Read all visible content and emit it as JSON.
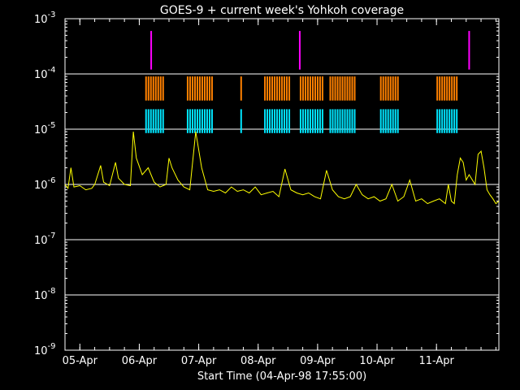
{
  "chart_data": {
    "type": "line",
    "title": "GOES-9 + current week's Yohkoh coverage",
    "xlabel": "Start Time (04-Apr-98 17:55:00)",
    "ylabel": "",
    "y_scale": "log",
    "ylim": [
      "1e-9",
      "1e-3"
    ],
    "y_tick_labels": [
      {
        "base": "10",
        "exp": "-9"
      },
      {
        "base": "10",
        "exp": "-8"
      },
      {
        "base": "10",
        "exp": "-7"
      },
      {
        "base": "10",
        "exp": "-6"
      },
      {
        "base": "10",
        "exp": "-5"
      },
      {
        "base": "10",
        "exp": "-4"
      },
      {
        "base": "10",
        "exp": "-3"
      }
    ],
    "x_tick_labels": [
      "05-Apr",
      "06-Apr",
      "07-Apr",
      "08-Apr",
      "09-Apr",
      "10-Apr",
      "11-Apr"
    ],
    "x_range_days": [
      0,
      7.3
    ],
    "x_tick_days": [
      0.25,
      1.25,
      2.25,
      3.25,
      4.25,
      5.25,
      6.25
    ],
    "grid_y_values": [
      "1e-4",
      "1e-5",
      "1e-6",
      "1e-7",
      "1e-8"
    ],
    "colors": {
      "xray": "#ffff00",
      "flare_markers": "#ff00ff",
      "coverage_upper": "#ff8000",
      "coverage_lower": "#00e5ff",
      "grid": "#ffffff",
      "axes": "#ffffff"
    },
    "series": [
      {
        "values": [
          [
            0.0,
            1e-06
          ],
          [
            0.05,
            8.5e-07
          ],
          [
            0.1,
            2e-06
          ],
          [
            0.15,
            9e-07
          ],
          [
            0.25,
            9.5e-07
          ],
          [
            0.35,
            8e-07
          ],
          [
            0.45,
            8.5e-07
          ],
          [
            0.5,
            1e-06
          ],
          [
            0.6,
            2.2e-06
          ],
          [
            0.65,
            1.1e-06
          ],
          [
            0.75,
            9.5e-07
          ],
          [
            0.85,
            2.5e-06
          ],
          [
            0.9,
            1.3e-06
          ],
          [
            1.0,
            1e-06
          ],
          [
            1.1,
            9.5e-07
          ],
          [
            1.15,
            9e-06
          ],
          [
            1.2,
            3e-06
          ],
          [
            1.3,
            1.5e-06
          ],
          [
            1.4,
            2e-06
          ],
          [
            1.5,
            1.1e-06
          ],
          [
            1.6,
            9e-07
          ],
          [
            1.7,
            1e-06
          ],
          [
            1.75,
            3e-06
          ],
          [
            1.8,
            2e-06
          ],
          [
            1.9,
            1.2e-06
          ],
          [
            2.0,
            9e-07
          ],
          [
            2.1,
            8e-07
          ],
          [
            2.2,
            9e-06
          ],
          [
            2.3,
            2e-06
          ],
          [
            2.4,
            8e-07
          ],
          [
            2.5,
            7.5e-07
          ],
          [
            2.6,
            8e-07
          ],
          [
            2.7,
            7e-07
          ],
          [
            2.8,
            9e-07
          ],
          [
            2.9,
            7.5e-07
          ],
          [
            3.0,
            8e-07
          ],
          [
            3.1,
            7e-07
          ],
          [
            3.2,
            9e-07
          ],
          [
            3.3,
            6.5e-07
          ],
          [
            3.4,
            7e-07
          ],
          [
            3.5,
            7.5e-07
          ],
          [
            3.6,
            6e-07
          ],
          [
            3.7,
            1.9e-06
          ],
          [
            3.8,
            8e-07
          ],
          [
            3.9,
            7e-07
          ],
          [
            4.0,
            6.5e-07
          ],
          [
            4.1,
            7e-07
          ],
          [
            4.2,
            6e-07
          ],
          [
            4.3,
            5.5e-07
          ],
          [
            4.4,
            1.8e-06
          ],
          [
            4.5,
            8e-07
          ],
          [
            4.6,
            6e-07
          ],
          [
            4.7,
            5.5e-07
          ],
          [
            4.8,
            6e-07
          ],
          [
            4.9,
            1e-06
          ],
          [
            5.0,
            6.5e-07
          ],
          [
            5.1,
            5.5e-07
          ],
          [
            5.2,
            6e-07
          ],
          [
            5.3,
            5e-07
          ],
          [
            5.4,
            5.5e-07
          ],
          [
            5.5,
            1e-06
          ],
          [
            5.6,
            5e-07
          ],
          [
            5.7,
            6e-07
          ],
          [
            5.8,
            1.2e-06
          ],
          [
            5.9,
            5e-07
          ],
          [
            6.0,
            5.5e-07
          ],
          [
            6.1,
            4.5e-07
          ],
          [
            6.2,
            5e-07
          ],
          [
            6.3,
            5.5e-07
          ],
          [
            6.4,
            4.5e-07
          ],
          [
            6.45,
            1e-06
          ],
          [
            6.5,
            5e-07
          ],
          [
            6.55,
            4.5e-07
          ],
          [
            6.6,
            1.5e-06
          ],
          [
            6.65,
            3e-06
          ],
          [
            6.7,
            2.5e-06
          ],
          [
            6.75,
            1.2e-06
          ],
          [
            6.8,
            1.5e-06
          ],
          [
            6.9,
            1e-06
          ],
          [
            6.95,
            3.5e-06
          ],
          [
            7.0,
            4e-06
          ],
          [
            7.05,
            2e-06
          ],
          [
            7.1,
            8e-07
          ],
          [
            7.15,
            6.5e-07
          ],
          [
            7.2,
            5.5e-07
          ],
          [
            7.25,
            4.5e-07
          ],
          [
            7.3,
            5e-07
          ]
        ]
      }
    ],
    "flare_markers_days": [
      1.45,
      3.95,
      6.8
    ],
    "coverage_intervals_days": [
      [
        1.35,
        1.65
      ],
      [
        2.05,
        2.5
      ],
      [
        2.95,
        2.99
      ],
      [
        3.35,
        3.8
      ],
      [
        3.95,
        4.35
      ],
      [
        4.45,
        4.9
      ],
      [
        5.3,
        5.6
      ],
      [
        6.25,
        6.6
      ]
    ]
  }
}
